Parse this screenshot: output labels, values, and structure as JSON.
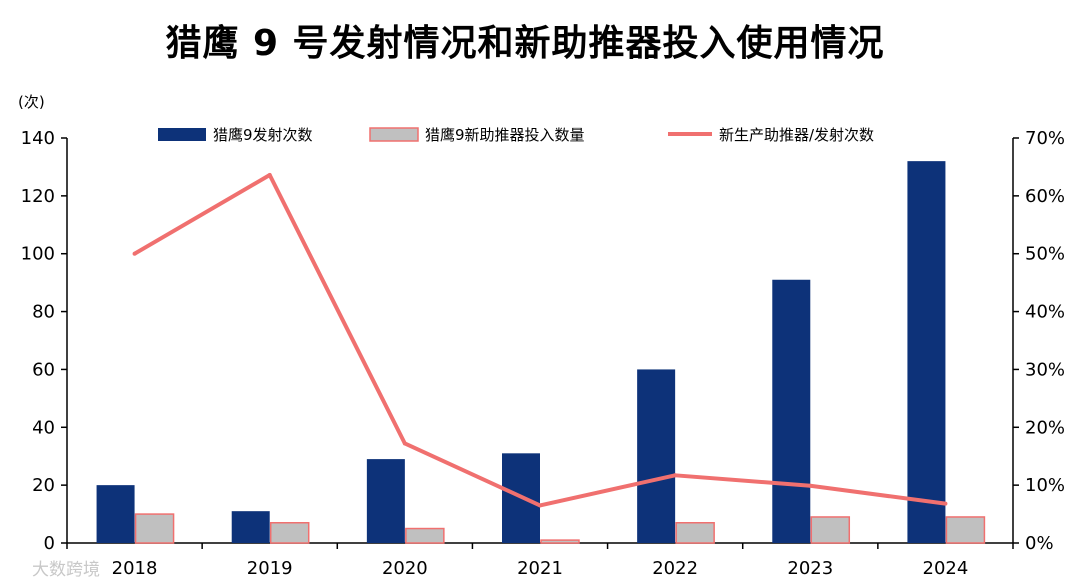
{
  "chart_data": {
    "type": "bar+line",
    "title": "猎鹰 9 号发射情况和新助推器投入使用情况",
    "y_unit_label": "(次)",
    "categories": [
      "2018",
      "2019",
      "2020",
      "2021",
      "2022",
      "2023",
      "2024"
    ],
    "left_axis": {
      "range": [
        0,
        140
      ],
      "ticks": [
        0,
        20,
        40,
        60,
        80,
        100,
        120,
        140
      ]
    },
    "right_axis": {
      "range": [
        0,
        70
      ],
      "ticks": [
        "0%",
        "10%",
        "20%",
        "30%",
        "40%",
        "50%",
        "60%",
        "70%"
      ]
    },
    "series": [
      {
        "name": "猎鹰9发射次数",
        "kind": "bar",
        "axis": "left",
        "color": "#0d3279",
        "values": [
          20,
          11,
          29,
          31,
          60,
          91,
          132
        ]
      },
      {
        "name": "猎鹰9新助推器投入数量",
        "kind": "bar",
        "axis": "left",
        "color": "#c0c0c0",
        "edge": "#f0706f",
        "values": [
          10,
          7,
          5,
          1,
          7,
          9,
          9
        ]
      },
      {
        "name": "新生产助推器/发射次数",
        "kind": "line",
        "axis": "right",
        "color": "#f0706f",
        "values": [
          50,
          63.6,
          17.2,
          6.5,
          11.7,
          9.9,
          6.8
        ]
      }
    ],
    "legend_position": "top"
  },
  "watermark": "大数跨境"
}
